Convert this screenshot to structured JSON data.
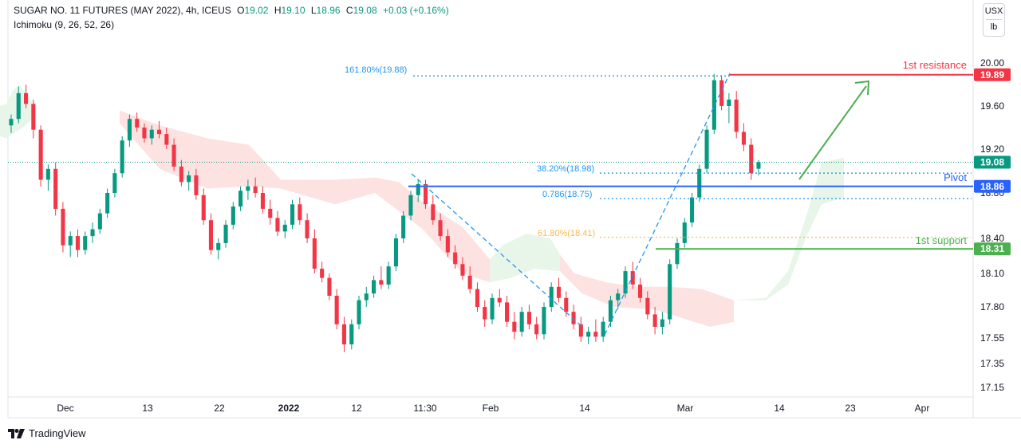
{
  "header": {
    "symbol": "SUGAR NO. 11 FUTURES (MAY 2022), 4h, ICEUS",
    "open_label": "O",
    "open": "19.02",
    "high_label": "H",
    "high": "19.10",
    "low_label": "L",
    "low": "18.96",
    "close_label": "C",
    "close": "19.08",
    "change": "+0.03 (+0.16%)",
    "indicator": "Ichimoku (9, 26, 52, 26)"
  },
  "units": {
    "currency": "USX",
    "unit": "lb"
  },
  "branding": {
    "name": "TradingView"
  },
  "colors": {
    "up": "#089981",
    "down": "#f23645",
    "resistance": "#f23645",
    "support": "#4caf50",
    "pivot": "#2962ff",
    "fib_blue": "#2196f3",
    "fib_orange": "#ffb74d",
    "cloud_green": "#e8f5e9",
    "cloud_red": "#fde2e2"
  },
  "chart_data": {
    "type": "candlestick",
    "title": "SUGAR NO. 11 FUTURES (MAY 2022), 4h, ICEUS",
    "y_ticks": [
      20.0,
      19.6,
      19.2,
      18.8,
      18.4,
      18.1,
      17.8,
      17.55,
      17.35,
      17.15
    ],
    "x_ticks": [
      "Dec",
      "13",
      "22",
      "2022",
      "12",
      "11:30",
      "Feb",
      "14",
      "Mar",
      "14",
      "23",
      "Apr"
    ],
    "price_line": 19.08,
    "levels": [
      {
        "name": "1st resistance",
        "price": 19.89,
        "label": "19.89",
        "color": "#f23645"
      },
      {
        "name": "Pivot",
        "price": 18.86,
        "label": "18.86",
        "color": "#2962ff"
      },
      {
        "name": "1st support",
        "price": 18.31,
        "label": "18.31",
        "color": "#4caf50"
      }
    ],
    "current_price_label": "19.08",
    "fib_labels": [
      {
        "text": "161.80%(19.88)",
        "price": 19.88,
        "color": "#2196f3"
      },
      {
        "text": "38.20%(18.98)",
        "price": 18.98,
        "color": "#2196f3"
      },
      {
        "text": "0.786(18.75)",
        "price": 18.75,
        "color": "#2196f3"
      },
      {
        "text": "61.80%(18.41)",
        "price": 18.41,
        "color": "#ffb74d"
      }
    ],
    "candles": [
      [
        19.42,
        19.52,
        19.35,
        19.48
      ],
      [
        19.48,
        19.78,
        19.44,
        19.72
      ],
      [
        19.72,
        19.8,
        19.58,
        19.62
      ],
      [
        19.62,
        19.66,
        19.3,
        19.38
      ],
      [
        19.38,
        19.42,
        18.86,
        18.92
      ],
      [
        18.92,
        19.06,
        18.82,
        19.02
      ],
      [
        19.02,
        19.08,
        18.6,
        18.66
      ],
      [
        18.66,
        18.72,
        18.28,
        18.34
      ],
      [
        18.34,
        18.46,
        18.24,
        18.42
      ],
      [
        18.42,
        18.48,
        18.24,
        18.3
      ],
      [
        18.3,
        18.46,
        18.26,
        18.42
      ],
      [
        18.42,
        18.54,
        18.36,
        18.48
      ],
      [
        18.48,
        18.66,
        18.44,
        18.62
      ],
      [
        18.62,
        18.84,
        18.58,
        18.8
      ],
      [
        18.8,
        19.02,
        18.76,
        18.98
      ],
      [
        18.98,
        19.32,
        18.94,
        19.28
      ],
      [
        19.28,
        19.52,
        19.22,
        19.48
      ],
      [
        19.48,
        19.54,
        19.36,
        19.4
      ],
      [
        19.4,
        19.44,
        19.26,
        19.3
      ],
      [
        19.3,
        19.42,
        19.24,
        19.38
      ],
      [
        19.38,
        19.46,
        19.3,
        19.34
      ],
      [
        19.34,
        19.4,
        19.2,
        19.24
      ],
      [
        19.24,
        19.3,
        19.0,
        19.04
      ],
      [
        19.04,
        19.1,
        18.86,
        18.9
      ],
      [
        18.9,
        19.0,
        18.82,
        18.96
      ],
      [
        18.96,
        19.02,
        18.74,
        18.78
      ],
      [
        18.78,
        18.84,
        18.52,
        18.56
      ],
      [
        18.56,
        18.62,
        18.26,
        18.3
      ],
      [
        18.3,
        18.4,
        18.22,
        18.36
      ],
      [
        18.36,
        18.56,
        18.32,
        18.52
      ],
      [
        18.52,
        18.72,
        18.48,
        18.68
      ],
      [
        18.68,
        18.86,
        18.64,
        18.82
      ],
      [
        18.82,
        18.92,
        18.74,
        18.86
      ],
      [
        18.86,
        18.94,
        18.76,
        18.8
      ],
      [
        18.8,
        18.86,
        18.62,
        18.66
      ],
      [
        18.66,
        18.74,
        18.52,
        18.58
      ],
      [
        18.58,
        18.64,
        18.42,
        18.46
      ],
      [
        18.46,
        18.56,
        18.4,
        18.52
      ],
      [
        18.52,
        18.74,
        18.48,
        18.7
      ],
      [
        18.7,
        18.76,
        18.52,
        18.56
      ],
      [
        18.56,
        18.62,
        18.36,
        18.4
      ],
      [
        18.4,
        18.48,
        18.1,
        18.14
      ],
      [
        18.14,
        18.2,
        18.02,
        18.06
      ],
      [
        18.06,
        18.1,
        17.86,
        17.9
      ],
      [
        17.9,
        17.96,
        17.62,
        17.66
      ],
      [
        17.66,
        17.72,
        17.44,
        17.5
      ],
      [
        17.5,
        17.7,
        17.46,
        17.66
      ],
      [
        17.66,
        17.9,
        17.62,
        17.86
      ],
      [
        17.86,
        17.98,
        17.8,
        17.92
      ],
      [
        17.92,
        18.08,
        17.88,
        18.04
      ],
      [
        18.04,
        18.16,
        17.96,
        18.0
      ],
      [
        18.0,
        18.2,
        17.96,
        18.16
      ],
      [
        18.16,
        18.44,
        18.12,
        18.4
      ],
      [
        18.4,
        18.64,
        18.36,
        18.6
      ],
      [
        18.6,
        18.82,
        18.56,
        18.78
      ],
      [
        18.78,
        18.92,
        18.72,
        18.88
      ],
      [
        18.88,
        18.92,
        18.66,
        18.7
      ],
      [
        18.7,
        18.78,
        18.52,
        18.56
      ],
      [
        18.56,
        18.62,
        18.38,
        18.42
      ],
      [
        18.42,
        18.48,
        18.24,
        18.28
      ],
      [
        18.28,
        18.34,
        18.14,
        18.18
      ],
      [
        18.18,
        18.24,
        18.04,
        18.08
      ],
      [
        18.08,
        18.16,
        17.92,
        17.96
      ],
      [
        17.96,
        18.02,
        17.76,
        17.8
      ],
      [
        17.8,
        17.86,
        17.64,
        17.7
      ],
      [
        17.7,
        17.92,
        17.66,
        17.88
      ],
      [
        17.88,
        17.96,
        17.8,
        17.84
      ],
      [
        17.84,
        17.9,
        17.64,
        17.68
      ],
      [
        17.68,
        17.76,
        17.54,
        17.6
      ],
      [
        17.6,
        17.8,
        17.56,
        17.76
      ],
      [
        17.76,
        17.82,
        17.62,
        17.66
      ],
      [
        17.66,
        17.72,
        17.54,
        17.58
      ],
      [
        17.58,
        17.84,
        17.54,
        17.8
      ],
      [
        17.8,
        18.02,
        17.76,
        17.98
      ],
      [
        17.98,
        18.06,
        17.84,
        17.88
      ],
      [
        17.88,
        17.94,
        17.72,
        17.76
      ],
      [
        17.76,
        17.82,
        17.62,
        17.66
      ],
      [
        17.66,
        17.72,
        17.52,
        17.56
      ],
      [
        17.56,
        17.64,
        17.5,
        17.6
      ],
      [
        17.6,
        17.7,
        17.52,
        17.56
      ],
      [
        17.56,
        17.72,
        17.52,
        17.68
      ],
      [
        17.68,
        17.9,
        17.64,
        17.86
      ],
      [
        17.86,
        17.96,
        17.78,
        17.92
      ],
      [
        17.92,
        18.16,
        17.88,
        18.12
      ],
      [
        18.12,
        18.2,
        17.96,
        18.0
      ],
      [
        18.0,
        18.06,
        17.84,
        17.88
      ],
      [
        17.88,
        17.94,
        17.7,
        17.74
      ],
      [
        17.74,
        17.8,
        17.58,
        17.64
      ],
      [
        17.64,
        17.76,
        17.58,
        17.7
      ],
      [
        17.7,
        18.22,
        17.66,
        18.18
      ],
      [
        18.18,
        18.4,
        18.14,
        18.36
      ],
      [
        18.36,
        18.58,
        18.32,
        18.54
      ],
      [
        18.54,
        18.8,
        18.5,
        18.76
      ],
      [
        18.76,
        19.06,
        18.72,
        19.02
      ],
      [
        19.02,
        19.42,
        18.98,
        19.38
      ],
      [
        19.38,
        19.9,
        19.34,
        19.84
      ],
      [
        19.84,
        19.88,
        19.56,
        19.6
      ],
      [
        19.6,
        19.72,
        19.44,
        19.66
      ],
      [
        19.66,
        19.74,
        19.3,
        19.36
      ],
      [
        19.36,
        19.44,
        19.18,
        19.24
      ],
      [
        19.24,
        19.3,
        18.92,
        18.98
      ],
      [
        19.02,
        19.1,
        18.96,
        19.08
      ]
    ],
    "ichimoku_cloud": {
      "green_segments": [
        {
          "upper": [
            [
              0,
              19.6
            ],
            [
              8,
              19.62
            ],
            [
              16,
              19.74
            ],
            [
              24,
              19.8
            ],
            [
              32,
              19.72
            ],
            [
              40,
              19.64
            ]
          ],
          "lower": [
            [
              0,
              19.32
            ],
            [
              8,
              19.3
            ],
            [
              16,
              19.34
            ],
            [
              24,
              19.38
            ],
            [
              32,
              19.42
            ],
            [
              40,
              19.48
            ]
          ]
        },
        {
          "upper": [
            [
              322,
              18.98
            ],
            [
              330,
              19.0
            ],
            [
              342,
              18.99
            ],
            [
              352,
              18.92
            ]
          ],
          "lower": [
            [
              322,
              18.9
            ],
            [
              330,
              18.88
            ],
            [
              342,
              18.86
            ],
            [
              352,
              18.84
            ]
          ]
        },
        {
          "upper": [
            [
              614,
              18.22
            ],
            [
              630,
              18.34
            ],
            [
              660,
              18.44
            ],
            [
              690,
              18.4
            ],
            [
              702,
              18.26
            ]
          ],
          "lower": [
            [
              614,
              18.02
            ],
            [
              640,
              18.06
            ],
            [
              670,
              18.14
            ],
            [
              702,
              18.12
            ]
          ]
        },
        {
          "upper": [
            [
              920,
              17.86
            ],
            [
              960,
              17.88
            ],
            [
              988,
              18.12
            ],
            [
              1012,
              18.62
            ],
            [
              1030,
              19.08
            ],
            [
              1058,
              19.12
            ]
          ],
          "lower": [
            [
              920,
              17.86
            ],
            [
              960,
              17.86
            ],
            [
              988,
              18.0
            ],
            [
              1010,
              18.4
            ],
            [
              1030,
              18.7
            ],
            [
              1058,
              18.76
            ]
          ]
        }
      ],
      "red_segments": [
        {
          "upper": [
            [
              150,
              19.56
            ],
            [
              200,
              19.42
            ],
            [
              260,
              19.3
            ],
            [
              312,
              19.24
            ],
            [
              330,
              19.1
            ],
            [
              352,
              18.92
            ]
          ],
          "lower": [
            [
              150,
              19.44
            ],
            [
              200,
              19.02
            ],
            [
              260,
              18.84
            ],
            [
              312,
              18.86
            ],
            [
              352,
              18.84
            ]
          ]
        },
        {
          "upper": [
            [
              352,
              18.92
            ],
            [
              420,
              18.92
            ],
            [
              470,
              18.94
            ],
            [
              500,
              18.9
            ],
            [
              530,
              18.72
            ],
            [
              580,
              18.5
            ],
            [
              614,
              18.22
            ]
          ],
          "lower": [
            [
              352,
              18.84
            ],
            [
              420,
              18.7
            ],
            [
              470,
              18.8
            ],
            [
              500,
              18.64
            ],
            [
              530,
              18.48
            ],
            [
              580,
              18.1
            ],
            [
              614,
              18.02
            ]
          ]
        },
        {
          "upper": [
            [
              702,
              18.26
            ],
            [
              720,
              18.1
            ],
            [
              760,
              18.02
            ],
            [
              800,
              17.98
            ],
            [
              840,
              17.98
            ],
            [
              880,
              17.96
            ],
            [
              920,
              17.86
            ]
          ],
          "lower": [
            [
              702,
              18.12
            ],
            [
              730,
              17.92
            ],
            [
              770,
              17.8
            ],
            [
              820,
              17.78
            ],
            [
              860,
              17.7
            ],
            [
              890,
              17.64
            ],
            [
              920,
              17.68
            ]
          ]
        }
      ]
    }
  }
}
